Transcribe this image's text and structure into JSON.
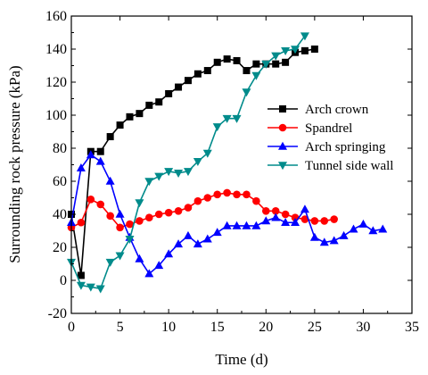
{
  "chart_data": {
    "type": "line",
    "title": "",
    "xlabel": "Time (d)",
    "ylabel": "Surrounding rock pressure (kPa)",
    "xlim": [
      0,
      35
    ],
    "ylim": [
      -20,
      160
    ],
    "xticks": [
      0,
      5,
      10,
      15,
      20,
      25,
      30,
      35
    ],
    "yticks": [
      -20,
      0,
      20,
      40,
      60,
      80,
      100,
      120,
      140,
      160
    ],
    "xtick_labels": [
      "0",
      "5",
      "10",
      "15",
      "20",
      "25",
      "30",
      "35"
    ],
    "ytick_labels": [
      "-20",
      "0",
      "20",
      "40",
      "60",
      "80",
      "100",
      "120",
      "140",
      "160"
    ],
    "grid": false,
    "legend_position": "right-center",
    "series": [
      {
        "name": "Arch crown",
        "color": "#000000",
        "marker": "square",
        "x": [
          0,
          1,
          2,
          3,
          4,
          5,
          6,
          7,
          8,
          9,
          10,
          11,
          12,
          13,
          14,
          15,
          16,
          17,
          18,
          19,
          20,
          21,
          22,
          23,
          24,
          25
        ],
        "y": [
          40,
          3,
          78,
          78,
          87,
          94,
          99,
          101,
          106,
          108,
          113,
          117,
          121,
          125,
          127,
          132,
          134,
          133,
          127,
          131,
          131,
          131,
          132,
          138,
          139,
          140
        ]
      },
      {
        "name": "Spandrel",
        "color": "#ff0000",
        "marker": "circle",
        "x": [
          0,
          1,
          2,
          3,
          4,
          5,
          6,
          7,
          8,
          9,
          10,
          11,
          12,
          13,
          14,
          15,
          16,
          17,
          18,
          19,
          20,
          21,
          22,
          23,
          24,
          25,
          26,
          27
        ],
        "y": [
          32,
          35,
          49,
          46,
          39,
          32,
          34,
          36,
          38,
          40,
          41,
          42,
          44,
          48,
          50,
          52,
          53,
          52,
          52,
          48,
          42,
          42,
          40,
          38,
          37,
          36,
          36,
          37
        ]
      },
      {
        "name": "Arch springing",
        "color": "#0000ff",
        "marker": "triangle-up",
        "x": [
          0,
          1,
          2,
          3,
          4,
          5,
          6,
          7,
          8,
          9,
          10,
          11,
          12,
          13,
          14,
          15,
          16,
          17,
          18,
          19,
          20,
          21,
          22,
          23,
          24,
          25,
          26,
          27,
          28,
          29,
          30,
          31,
          32
        ],
        "y": [
          35,
          68,
          76,
          72,
          60,
          40,
          26,
          13,
          4,
          9,
          16,
          22,
          27,
          22,
          25,
          29,
          33,
          33,
          33,
          33,
          36,
          38,
          35,
          35,
          43,
          26,
          23,
          24,
          27,
          31,
          34,
          30,
          31
        ]
      },
      {
        "name": "Tunnel side wall",
        "color": "#008b8b",
        "marker": "triangle-down",
        "x": [
          0,
          1,
          2,
          3,
          4,
          5,
          6,
          7,
          8,
          9,
          10,
          11,
          12,
          13,
          14,
          15,
          16,
          17,
          18,
          19,
          20,
          21,
          22,
          23,
          24
        ],
        "y": [
          11,
          -3,
          -4,
          -5,
          11,
          15,
          25,
          47,
          60,
          63,
          66,
          65,
          66,
          72,
          77,
          93,
          98,
          98,
          114,
          124,
          131,
          136,
          139,
          140,
          148
        ]
      }
    ]
  }
}
